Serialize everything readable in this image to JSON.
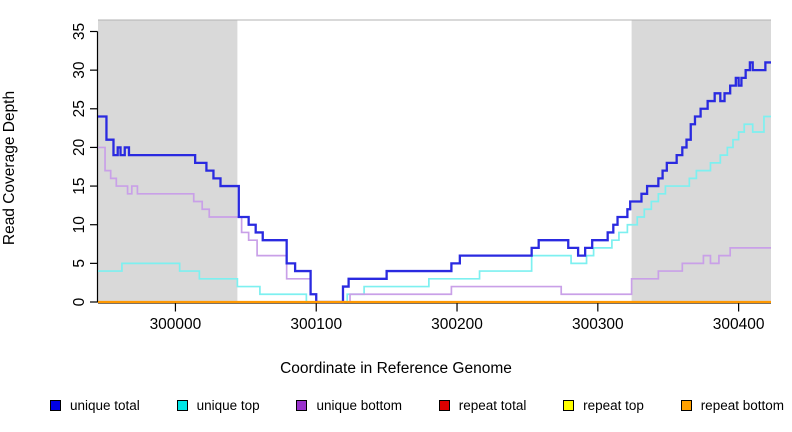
{
  "chart_data": {
    "type": "line",
    "subtype": "step",
    "title": "",
    "xlabel": "Coordinate in Reference Genome",
    "ylabel": "Read Coverage Depth",
    "xlim": [
      299945,
      300423
    ],
    "ylim": [
      0,
      35
    ],
    "x_ticks": [
      300000,
      300100,
      300200,
      300300,
      300400
    ],
    "y_ticks": [
      0,
      5,
      10,
      15,
      20,
      25,
      30,
      35
    ],
    "grid": false,
    "background_color": "#ffffff",
    "shaded_regions": [
      {
        "name": "left-repeat-flank",
        "x0": 299945,
        "x1": 300044,
        "color": "#d9d9d9"
      },
      {
        "name": "right-repeat-flank",
        "x0": 300324,
        "x1": 300423,
        "color": "#d9d9d9"
      }
    ],
    "series": [
      {
        "name": "unique top",
        "color": "#7df0f0",
        "width": 1.7,
        "steps": [
          [
            299945,
            4
          ],
          [
            299962,
            5
          ],
          [
            300003,
            4
          ],
          [
            300017,
            3
          ],
          [
            300044,
            2
          ],
          [
            300060,
            1
          ],
          [
            300093,
            0
          ],
          [
            300122,
            1
          ],
          [
            300134,
            2
          ],
          [
            300180,
            3
          ],
          [
            300216,
            4
          ],
          [
            300253,
            6
          ],
          [
            300281,
            5
          ],
          [
            300292,
            6
          ],
          [
            300297,
            7
          ],
          [
            300310,
            8
          ],
          [
            300315,
            9
          ],
          [
            300321,
            10
          ],
          [
            300328,
            11
          ],
          [
            300333,
            12
          ],
          [
            300338,
            13
          ],
          [
            300343,
            14
          ],
          [
            300348,
            15
          ],
          [
            300365,
            16
          ],
          [
            300370,
            17
          ],
          [
            300380,
            18
          ],
          [
            300387,
            19
          ],
          [
            300392,
            20
          ],
          [
            300396,
            21
          ],
          [
            300400,
            22
          ],
          [
            300404,
            23
          ],
          [
            300410,
            22
          ],
          [
            300418,
            24
          ]
        ]
      },
      {
        "name": "unique bottom",
        "color": "#c9a0e8",
        "width": 1.7,
        "steps": [
          [
            299945,
            20
          ],
          [
            299950,
            17
          ],
          [
            299954,
            16
          ],
          [
            299958,
            15
          ],
          [
            299966,
            14
          ],
          [
            299969,
            15
          ],
          [
            299973,
            14
          ],
          [
            300013,
            13
          ],
          [
            300019,
            12
          ],
          [
            300024,
            11
          ],
          [
            300047,
            9
          ],
          [
            300052,
            8
          ],
          [
            300058,
            6
          ],
          [
            300079,
            3
          ],
          [
            300096,
            1
          ],
          [
            300100,
            0
          ],
          [
            300124,
            1
          ],
          [
            300196,
            2
          ],
          [
            300274,
            1
          ],
          [
            300324,
            3
          ],
          [
            300343,
            4
          ],
          [
            300360,
            5
          ],
          [
            300375,
            6
          ],
          [
            300380,
            5
          ],
          [
            300386,
            6
          ],
          [
            300394,
            7
          ]
        ]
      },
      {
        "name": "unique total",
        "color": "#2a2ae0",
        "width": 2.3,
        "steps": [
          [
            299945,
            24
          ],
          [
            299951,
            21
          ],
          [
            299956,
            19
          ],
          [
            299959,
            20
          ],
          [
            299961,
            19
          ],
          [
            299964,
            20
          ],
          [
            299967,
            19
          ],
          [
            300014,
            18
          ],
          [
            300022,
            17
          ],
          [
            300027,
            16
          ],
          [
            300032,
            15
          ],
          [
            300045,
            11
          ],
          [
            300052,
            10
          ],
          [
            300057,
            9
          ],
          [
            300062,
            8
          ],
          [
            300079,
            5
          ],
          [
            300085,
            4
          ],
          [
            300096,
            1
          ],
          [
            300100,
            0
          ],
          [
            300119,
            2
          ],
          [
            300123,
            3
          ],
          [
            300150,
            4
          ],
          [
            300196,
            5
          ],
          [
            300202,
            6
          ],
          [
            300253,
            7
          ],
          [
            300258,
            8
          ],
          [
            300279,
            7
          ],
          [
            300286,
            6
          ],
          [
            300291,
            7
          ],
          [
            300296,
            8
          ],
          [
            300307,
            9
          ],
          [
            300311,
            10
          ],
          [
            300314,
            11
          ],
          [
            300321,
            12
          ],
          [
            300323,
            13
          ],
          [
            300331,
            14
          ],
          [
            300335,
            15
          ],
          [
            300343,
            16
          ],
          [
            300346,
            17
          ],
          [
            300349,
            18
          ],
          [
            300356,
            19
          ],
          [
            300360,
            20
          ],
          [
            300363,
            21
          ],
          [
            300366,
            23
          ],
          [
            300369,
            24
          ],
          [
            300373,
            25
          ],
          [
            300378,
            26
          ],
          [
            300383,
            27
          ],
          [
            300387,
            26
          ],
          [
            300390,
            27
          ],
          [
            300394,
            28
          ],
          [
            300398,
            29
          ],
          [
            300400,
            28
          ],
          [
            300402,
            29
          ],
          [
            300405,
            30
          ],
          [
            300408,
            31
          ],
          [
            300410,
            30
          ],
          [
            300419,
            31
          ]
        ]
      },
      {
        "name": "repeat total",
        "color": "#dd0000",
        "width": 1.5,
        "steps": [
          [
            299945,
            0
          ]
        ]
      },
      {
        "name": "repeat top",
        "color": "#ffee00",
        "width": 1.5,
        "steps": [
          [
            299945,
            0
          ]
        ]
      },
      {
        "name": "repeat bottom",
        "color": "#ff9800",
        "width": 2.2,
        "steps": [
          [
            299945,
            0
          ]
        ]
      }
    ],
    "legend": {
      "position": "bottom",
      "items": [
        {
          "label": "unique total",
          "fill": "#0000e6"
        },
        {
          "label": "unique top",
          "fill": "#00e6e6"
        },
        {
          "label": "unique bottom",
          "fill": "#9932cc"
        },
        {
          "label": "repeat total",
          "fill": "#dd0000"
        },
        {
          "label": "repeat top",
          "fill": "#ffff00"
        },
        {
          "label": "repeat bottom",
          "fill": "#ffa000"
        }
      ]
    }
  }
}
